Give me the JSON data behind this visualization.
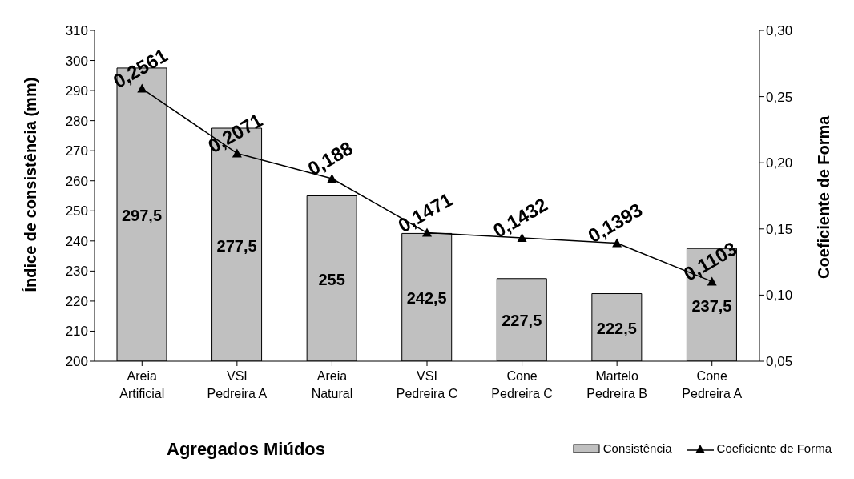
{
  "chart_data": {
    "type": "bar",
    "xlabel": "Agregados Miúdos",
    "ylabel": "Índice de consistência (mm)",
    "y2label": "Coeficiente de Forma",
    "categories": [
      "Areia\nArtificial",
      "VSI\nPedreira A",
      "Areia\nNatural",
      "VSI\nPedreira C",
      "Cone\nPedreira C",
      "Martelo\nPedreira B",
      "Cone\nPedreira A"
    ],
    "series": [
      {
        "name": "Consistência",
        "color": "#c0c0c0",
        "values": [
          297.5,
          277.5,
          255,
          242.5,
          227.5,
          222.5,
          237.5
        ],
        "value_labels": [
          "297,5",
          "277,5",
          "255",
          "242,5",
          "227,5",
          "222,5",
          "237,5"
        ]
      },
      {
        "name": "Coeficiente de Forma",
        "type": "line",
        "axis": "y2",
        "color": "#000000",
        "values": [
          0.2561,
          0.2071,
          0.188,
          0.1471,
          0.1432,
          0.1393,
          0.1103
        ],
        "value_labels": [
          "0,2561",
          "0,2071",
          "0,188",
          "0,1471",
          "0,1432",
          "0,1393",
          "0,1103"
        ]
      }
    ],
    "ylim": [
      200,
      310
    ],
    "yticks": [
      200,
      210,
      220,
      230,
      240,
      250,
      260,
      270,
      280,
      290,
      300,
      310
    ],
    "y2lim": [
      0.05,
      0.3
    ],
    "y2ticks": [
      {
        "value": 0.05,
        "label": "0,05"
      },
      {
        "value": 0.1,
        "label": "0,10"
      },
      {
        "value": 0.15,
        "label": "0,15"
      },
      {
        "value": 0.2,
        "label": "0,20"
      },
      {
        "value": 0.25,
        "label": "0,25"
      },
      {
        "value": 0.3,
        "label": "0,30"
      }
    ],
    "marker": "triangle",
    "line_style": "solid",
    "legend": "bottom right"
  }
}
